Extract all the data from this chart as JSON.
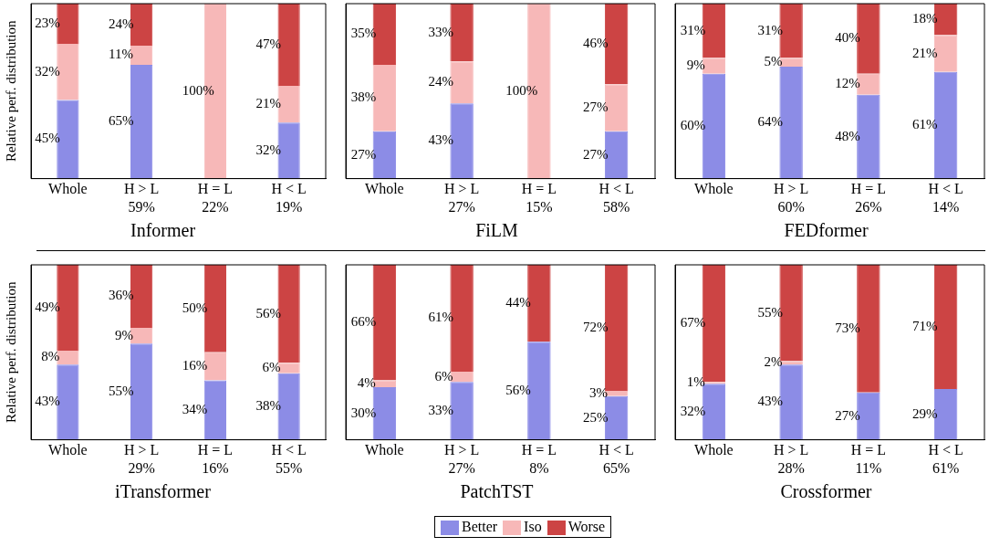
{
  "chart_data": [
    {
      "type": "bar",
      "stacked": true,
      "xlabel": "Informer",
      "ylabel": "Relative perf. distribution",
      "categories": [
        "Whole",
        "H > L\n59%",
        "H = L\n22%",
        "H < L\n19%"
      ],
      "tick_labels": false,
      "grid": false,
      "legend": "bottom",
      "series": [
        {
          "name": "Better",
          "color": "#8c8ce6",
          "values": [
            45,
            65,
            0,
            32
          ],
          "value_labels": [
            "45%",
            "65%",
            null,
            "32%"
          ]
        },
        {
          "name": "Iso",
          "color": "#f7b8b8",
          "values": [
            32,
            11,
            100,
            21
          ],
          "value_labels": [
            "32%",
            "11%",
            "100%",
            "21%"
          ]
        },
        {
          "name": "Worse",
          "color": "#cc4444",
          "values": [
            23,
            24,
            0,
            47
          ],
          "value_labels": [
            "23%",
            "24%",
            null,
            "47%"
          ]
        }
      ]
    },
    {
      "type": "bar",
      "stacked": true,
      "xlabel": "FiLM",
      "categories": [
        "Whole",
        "H > L\n27%",
        "H = L\n15%",
        "H < L\n58%"
      ],
      "tick_labels": false,
      "grid": false,
      "legend": "bottom",
      "series": [
        {
          "color": "#8c8ce6",
          "values": [
            27,
            43,
            0,
            27
          ],
          "value_labels": [
            "27%",
            "43%",
            null,
            "27%"
          ]
        },
        {
          "color": "#f7b8b8",
          "values": [
            38,
            24,
            100,
            27
          ],
          "value_labels": [
            "38%",
            "24%",
            "100%",
            "27%"
          ]
        },
        {
          "color": "#cc4444",
          "values": [
            35,
            33,
            0,
            46
          ],
          "value_labels": [
            "35%",
            "33%",
            null,
            "46%"
          ]
        }
      ]
    },
    {
      "type": "bar",
      "stacked": true,
      "xlabel": "FEDformer",
      "categories": [
        "Whole",
        "H > L\n60%",
        "H = L\n26%",
        "H < L\n14%"
      ],
      "tick_labels": false,
      "grid": false,
      "legend": "bottom",
      "series": [
        {
          "color": "#8c8ce6",
          "values": [
            60,
            64,
            48,
            61
          ],
          "value_labels": [
            "60%",
            "64%",
            "48%",
            "61%"
          ]
        },
        {
          "color": "#f7b8b8",
          "values": [
            9,
            5,
            12,
            21
          ],
          "value_labels": [
            "9%",
            "5%",
            "12%",
            "21%"
          ]
        },
        {
          "color": "#cc4444",
          "values": [
            31,
            31,
            40,
            18
          ],
          "value_labels": [
            "31%",
            "31%",
            "40%",
            "18%"
          ]
        }
      ]
    },
    {
      "type": "bar",
      "stacked": true,
      "xlabel": "iTransformer",
      "ylabel": "Relative perf. distribution",
      "categories": [
        "Whole",
        "H > L\n29%",
        "H = L\n16%",
        "H < L\n55%"
      ],
      "tick_labels": false,
      "grid": false,
      "legend": "bottom",
      "series": [
        {
          "color": "#8c8ce6",
          "values": [
            43,
            55,
            34,
            38
          ],
          "value_labels": [
            "43%",
            "55%",
            "34%",
            "38%"
          ]
        },
        {
          "color": "#f7b8b8",
          "values": [
            8,
            9,
            16,
            6
          ],
          "value_labels": [
            "8%",
            "9%",
            "16%",
            "6%"
          ]
        },
        {
          "color": "#cc4444",
          "values": [
            49,
            36,
            50,
            56
          ],
          "value_labels": [
            "49%",
            "36%",
            "50%",
            "56%"
          ]
        }
      ]
    },
    {
      "type": "bar",
      "stacked": true,
      "xlabel": "PatchTST",
      "categories": [
        "Whole",
        "H > L\n27%",
        "H = L\n8%",
        "H < L\n65%"
      ],
      "tick_labels": false,
      "grid": false,
      "legend": "bottom",
      "series": [
        {
          "color": "#8c8ce6",
          "values": [
            30,
            33,
            56,
            25
          ],
          "value_labels": [
            "30%",
            "33%",
            "56%",
            "25%"
          ]
        },
        {
          "color": "#f7b8b8",
          "values": [
            4,
            6,
            0,
            3
          ],
          "value_labels": [
            "4%",
            "6%",
            null,
            "3%"
          ]
        },
        {
          "color": "#cc4444",
          "values": [
            66,
            61,
            44,
            72
          ],
          "value_labels": [
            "66%",
            "61%",
            "44%",
            "72%"
          ]
        }
      ]
    },
    {
      "type": "bar",
      "stacked": true,
      "xlabel": "Crossformer",
      "categories": [
        "Whole",
        "H > L\n28%",
        "H = L\n11%",
        "H < L\n61%"
      ],
      "tick_labels": false,
      "grid": false,
      "legend": "bottom",
      "series": [
        {
          "color": "#8c8ce6",
          "values": [
            32,
            43,
            27,
            29
          ],
          "value_labels": [
            "32%",
            "43%",
            "27%",
            "29%"
          ]
        },
        {
          "color": "#f7b8b8",
          "values": [
            1,
            2,
            0,
            0
          ],
          "value_labels": [
            "1%",
            "2%",
            null,
            null
          ]
        },
        {
          "color": "#cc4444",
          "values": [
            67,
            55,
            73,
            71
          ],
          "value_labels": [
            "67%",
            "55%",
            "73%",
            "71%"
          ]
        }
      ]
    }
  ]
}
